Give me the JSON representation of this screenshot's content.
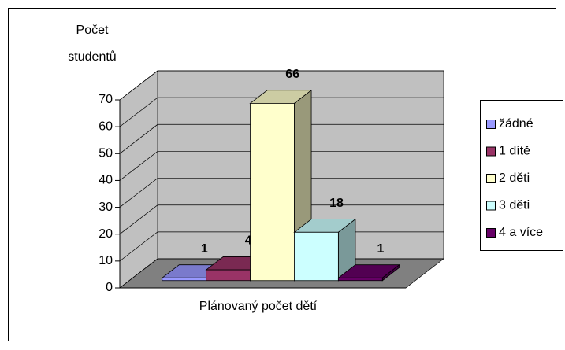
{
  "chart_data": {
    "type": "bar3d",
    "ylabel": "Počet studentů",
    "xlabel": "Plánovaný počet dětí",
    "categories": [
      "žádné",
      "1 dítě",
      "2 děti",
      "3 děti",
      "4 a více"
    ],
    "values": [
      1,
      4,
      66,
      18,
      1
    ],
    "colors": [
      "#9999ff",
      "#993366",
      "#ffffcc",
      "#ccffff",
      "#660066"
    ],
    "ylim": [
      0,
      70
    ],
    "yticks": [
      0,
      10,
      20,
      30,
      40,
      50,
      60,
      70
    ],
    "grid": true,
    "legend": "right"
  }
}
